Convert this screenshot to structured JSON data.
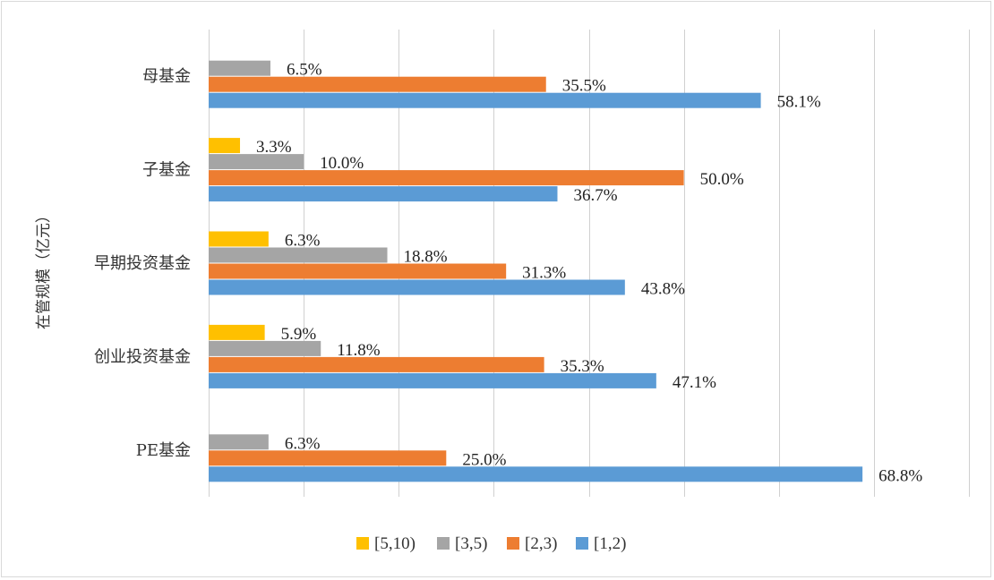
{
  "chart_data": {
    "type": "bar",
    "orientation": "horizontal",
    "title": "",
    "xlabel": "",
    "ylabel": "在管规模（亿元）",
    "categories": [
      "母基金",
      "子基金",
      "早期投资基金",
      "创业投资基金",
      "PE基金"
    ],
    "series": [
      {
        "name": "[5,10)",
        "color": "#ffc000",
        "values": [
          null,
          3.3,
          6.3,
          5.9,
          null
        ],
        "labels": [
          "",
          "3.3%",
          "6.3%",
          "5.9%",
          ""
        ]
      },
      {
        "name": "[3,5)",
        "color": "#a5a5a5",
        "values": [
          6.5,
          10.0,
          18.8,
          11.8,
          6.3
        ],
        "labels": [
          "6.5%",
          "10.0%",
          "18.8%",
          "11.8%",
          "6.3%"
        ]
      },
      {
        "name": "[2,3)",
        "color": "#ed7d31",
        "values": [
          35.5,
          50.0,
          31.3,
          35.3,
          25.0
        ],
        "labels": [
          "35.5%",
          "50.0%",
          "31.3%",
          "35.3%",
          "25.0%"
        ]
      },
      {
        "name": "[1,2)",
        "color": "#5b9bd5",
        "values": [
          58.1,
          36.7,
          43.8,
          47.1,
          68.8
        ],
        "labels": [
          "58.1%",
          "36.7%",
          "43.8%",
          "47.1%",
          "68.8%"
        ]
      }
    ],
    "xlim": [
      0,
      80
    ],
    "x_tick_step": 10,
    "grid": true,
    "legend": "bottom"
  }
}
